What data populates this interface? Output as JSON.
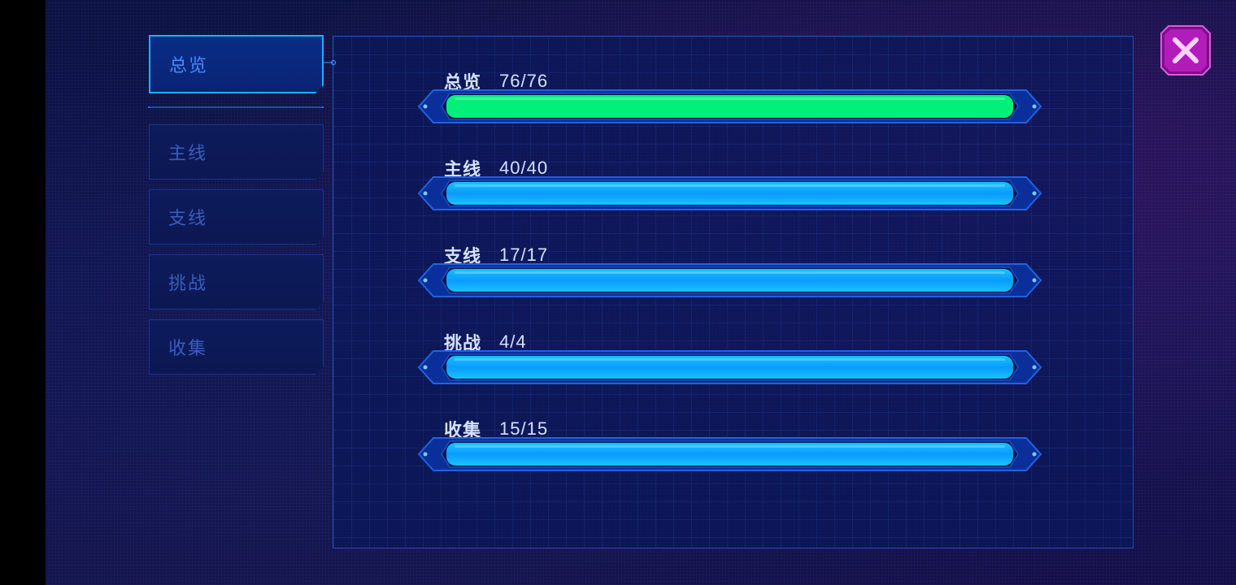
{
  "colors": {
    "accent": "#14b4ff",
    "bar_complete_total": "#00f07a",
    "bar_complete": "#0a9bff",
    "close_button": "#c21ec8"
  },
  "sidebar": {
    "tabs": [
      {
        "label": "总览",
        "active": true
      },
      {
        "label": "主线",
        "active": false
      },
      {
        "label": "支线",
        "active": false
      },
      {
        "label": "挑战",
        "active": false
      },
      {
        "label": "收集",
        "active": false
      }
    ]
  },
  "stats": [
    {
      "name": "总览",
      "count": "76/76",
      "progress": 1.0,
      "color": "green"
    },
    {
      "name": "主线",
      "count": "40/40",
      "progress": 1.0,
      "color": "blue"
    },
    {
      "name": "支线",
      "count": "17/17",
      "progress": 1.0,
      "color": "blue"
    },
    {
      "name": "挑战",
      "count": "4/4",
      "progress": 1.0,
      "color": "blue"
    },
    {
      "name": "收集",
      "count": "15/15",
      "progress": 1.0,
      "color": "blue"
    }
  ],
  "close_icon": "close-x-icon"
}
